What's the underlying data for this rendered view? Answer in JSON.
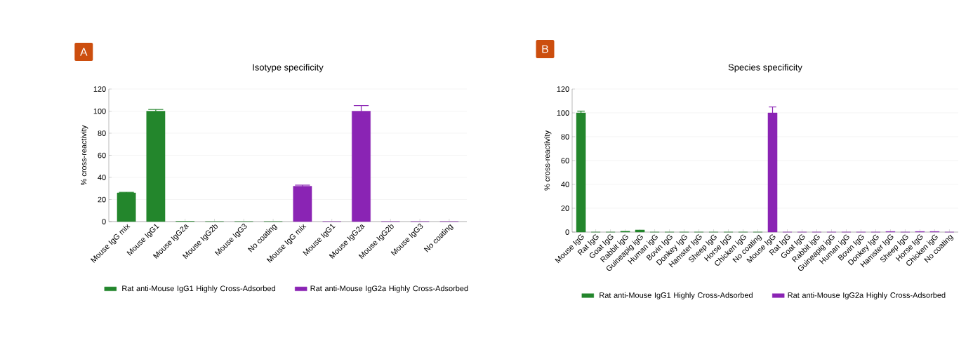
{
  "chart_data": [
    {
      "type": "bar",
      "title": "Isotype specificity",
      "ylabel": "% cross-reactivity",
      "annotations": [
        "A"
      ],
      "categories": [
        "Mouse IgG mix",
        "Mouse IgG1",
        "Mouse IgG2a",
        "Mouse IgG2b",
        "Mouse IgG3",
        "No coating",
        "Mouse IgG mix",
        "Mouse IgG1",
        "Mouse IgG2a",
        "Mouse IgG2b",
        "Mouse IgG3",
        "No coating"
      ],
      "series": [
        {
          "name": "Rat anti-Mouse IgG1 Highly Cross-Adsorbed",
          "color": "#23862c",
          "values": [
            26,
            100,
            0.3,
            0,
            0,
            0,
            null,
            null,
            null,
            null,
            null,
            null
          ],
          "errors": [
            0.5,
            1.5,
            null,
            null,
            null,
            null,
            null,
            null,
            null,
            null,
            null,
            null
          ]
        },
        {
          "name": "Rat anti-Mouse IgG2a Highly Cross-Adsorbed",
          "color": "#8a24b4",
          "values": [
            null,
            null,
            null,
            null,
            null,
            null,
            32,
            0,
            100,
            0,
            0,
            0
          ],
          "errors": [
            null,
            null,
            null,
            null,
            null,
            null,
            1,
            null,
            5,
            null,
            null,
            null
          ]
        }
      ],
      "ylim": [
        0,
        120
      ],
      "yticks": [
        0,
        20,
        40,
        60,
        80,
        100,
        120
      ],
      "grid": "y",
      "legend": "bottom"
    },
    {
      "type": "bar",
      "title": "Species specificity",
      "ylabel": "% cross-reactivity",
      "annotations": [
        "B"
      ],
      "categories": [
        "Mouse IgG",
        "Rat IgG",
        "Goat IgG",
        "Rabbit igG",
        "Guineapig igG",
        "Human igG",
        "Bovin IgG",
        "Donkey IgG",
        "Hamster IgG",
        "Sheep IgG",
        "Horse IgG",
        "Chicken igG",
        "No coating",
        "Mouse IgG",
        "Rat IgG",
        "Goat IgG",
        "Rabbit igG",
        "Guineapig igG",
        "Human igG",
        "Bovin IgG",
        "Donkey IgG",
        "Hamster IgG",
        "Sheep IgG",
        "Horse IgG",
        "Chicken igG",
        "No coating"
      ],
      "series": [
        {
          "name": "Rat anti-Mouse IgG1 Highly Cross-Adsorbed",
          "color": "#23862c",
          "values": [
            100,
            0,
            0,
            0.8,
            1.8,
            0,
            0,
            0,
            0,
            0,
            0,
            0,
            0,
            null,
            null,
            null,
            null,
            null,
            null,
            null,
            null,
            null,
            null,
            null,
            null,
            null
          ],
          "errors": [
            1.5,
            null,
            null,
            null,
            null,
            null,
            null,
            null,
            null,
            null,
            null,
            null,
            null,
            null,
            null,
            null,
            null,
            null,
            null,
            null,
            null,
            null,
            null,
            null,
            null,
            null
          ]
        },
        {
          "name": "Rat anti-Mouse IgG2a Highly Cross-Adsorbed",
          "color": "#8a24b4",
          "values": [
            null,
            null,
            null,
            null,
            null,
            null,
            null,
            null,
            null,
            null,
            null,
            null,
            null,
            100,
            0,
            0,
            0,
            0,
            0,
            0,
            0,
            0.5,
            0,
            0.5,
            0.5,
            0
          ],
          "errors": [
            null,
            null,
            null,
            null,
            null,
            null,
            null,
            null,
            null,
            null,
            null,
            null,
            null,
            5,
            null,
            null,
            null,
            null,
            null,
            null,
            null,
            null,
            null,
            null,
            null,
            null
          ]
        }
      ],
      "ylim": [
        0,
        120
      ],
      "yticks": [
        0,
        20,
        40,
        60,
        80,
        100,
        120
      ],
      "grid": "y",
      "legend": "bottom"
    }
  ]
}
